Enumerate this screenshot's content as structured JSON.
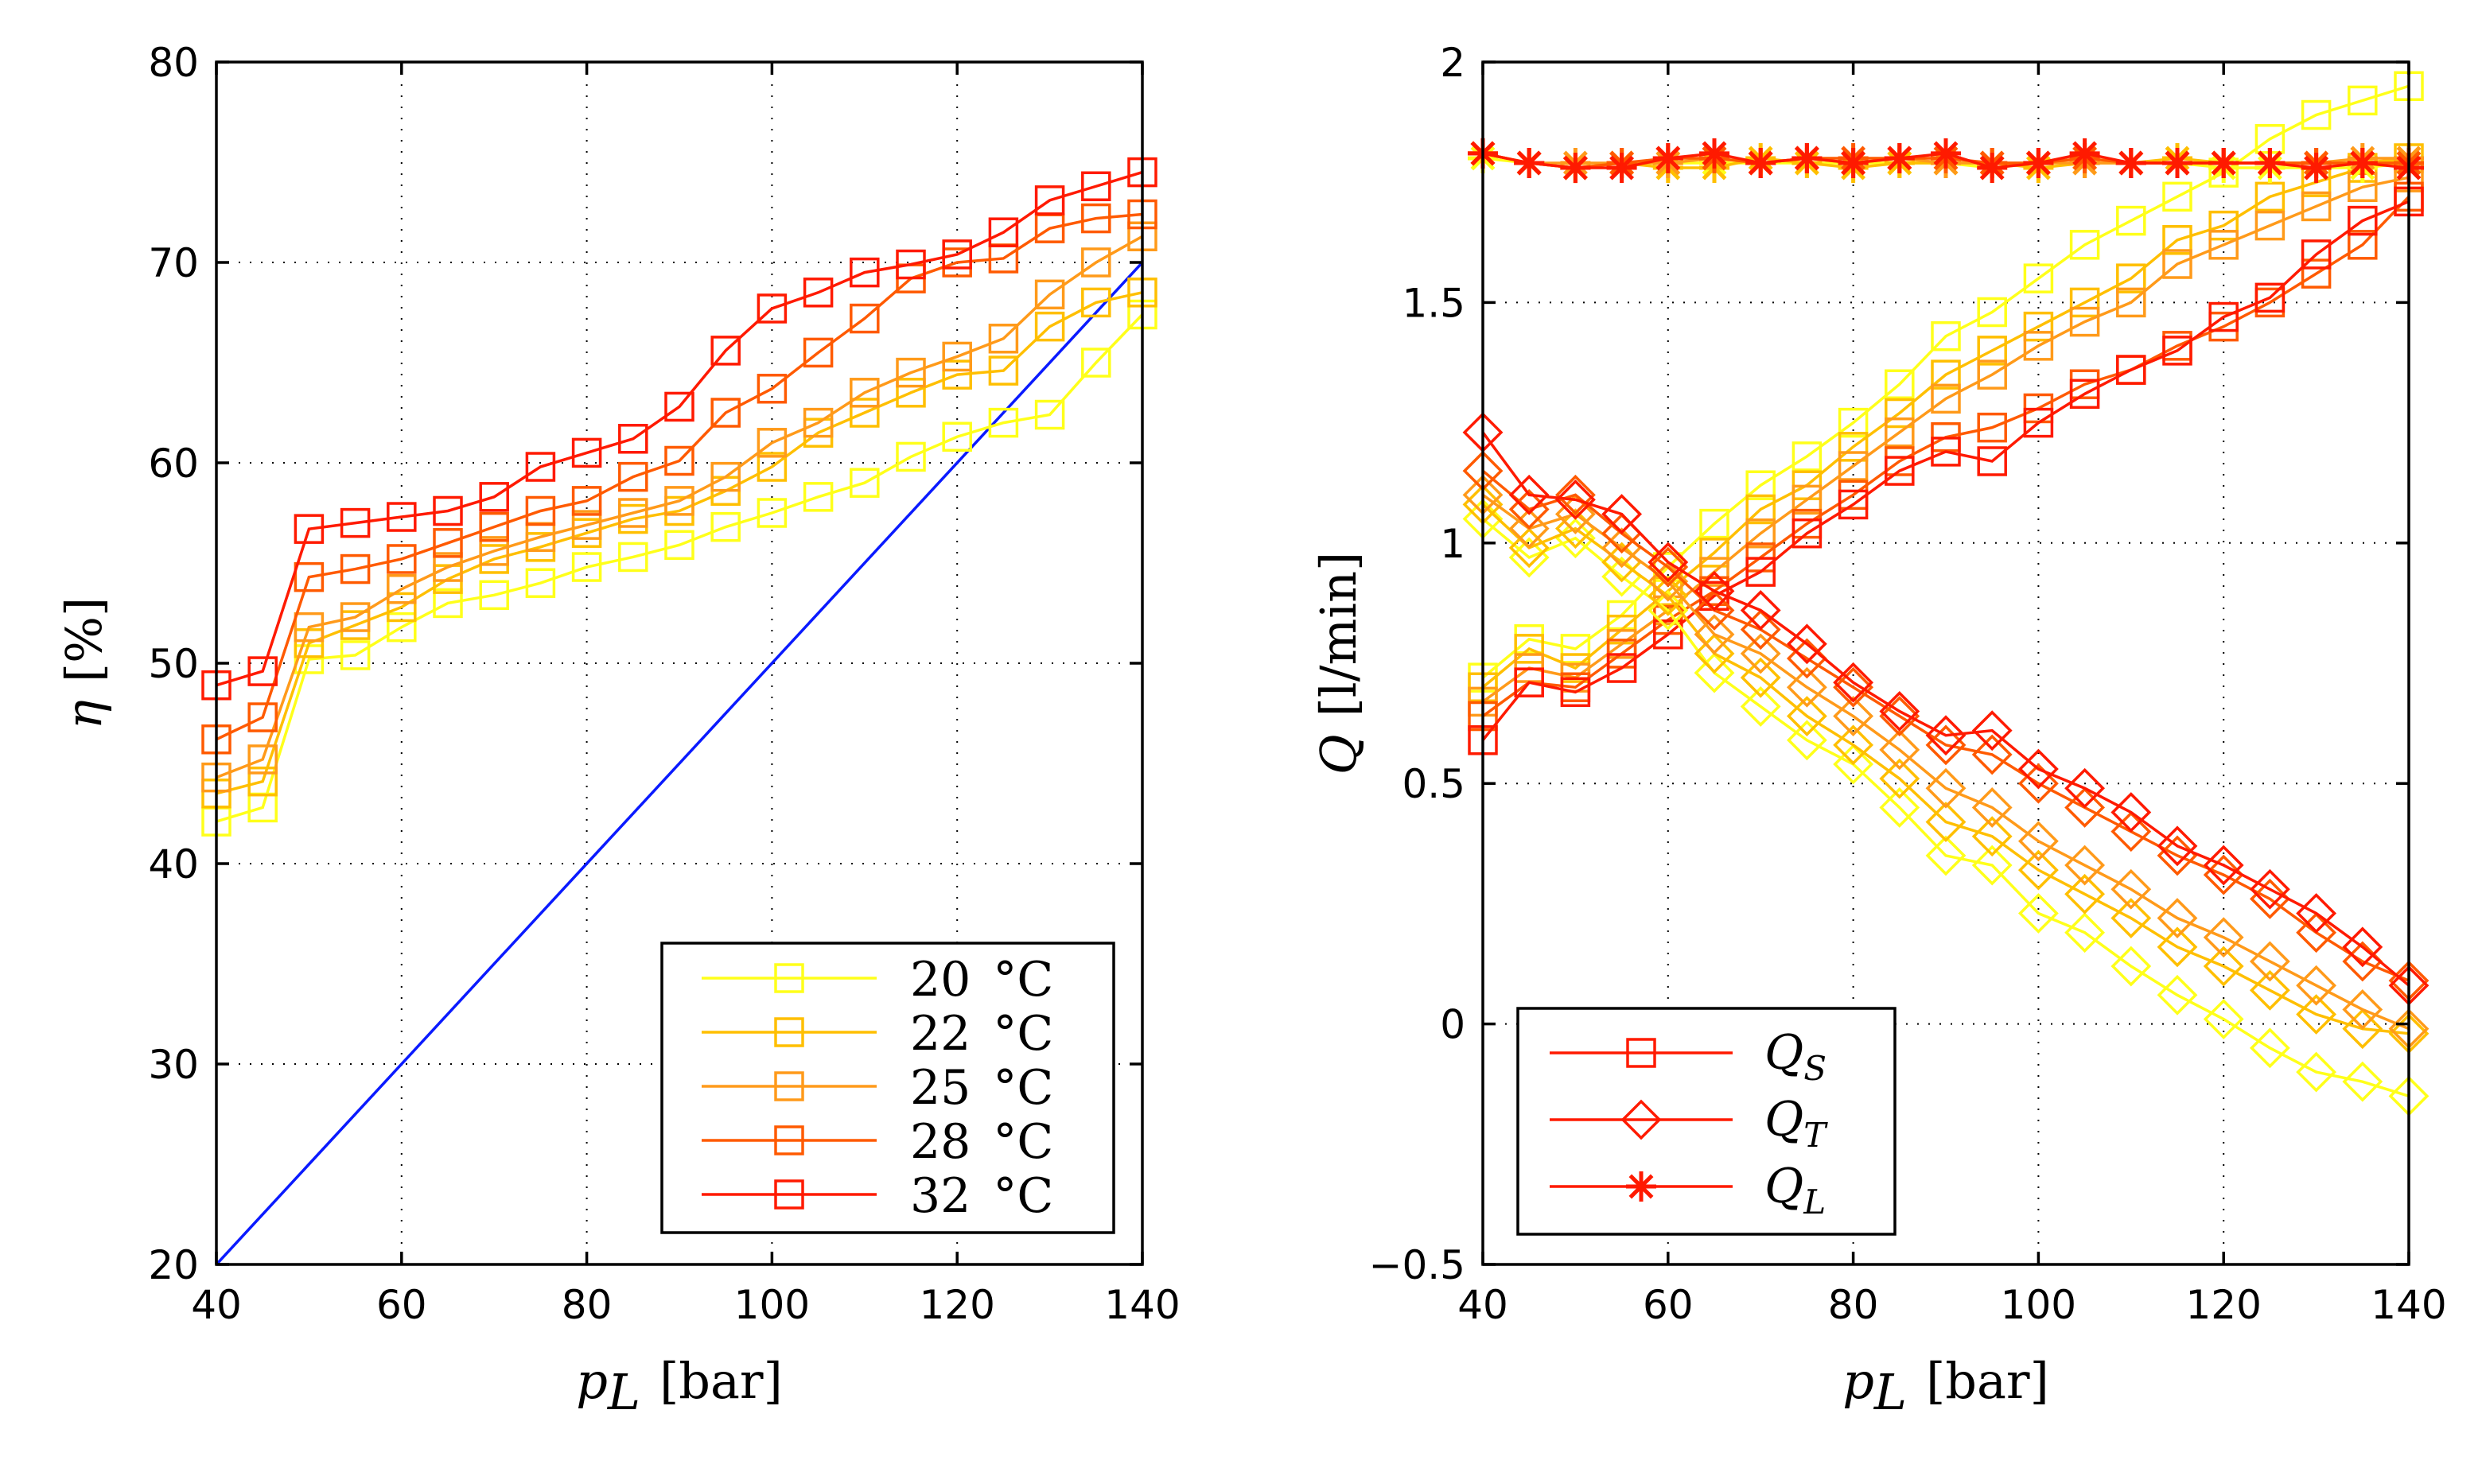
{
  "colors": {
    "c20": "#ffff1a",
    "c22": "#ffbf00",
    "c25": "#ff9a1a",
    "c28": "#ff5a00",
    "c32": "#ff1a00",
    "ref": "#0a1aff",
    "flow": "#ff1a00"
  },
  "chart_data": [
    {
      "type": "line",
      "id": "efficiency",
      "xlabel": "p_L [bar]",
      "xlabel_parts": {
        "sym": "p",
        "sub": "L",
        "unit": "[bar]"
      },
      "ylabel": "η [%]",
      "ylabel_parts": {
        "sym": "η",
        "unit": "[%]"
      },
      "xlim": [
        40,
        140
      ],
      "ylim": [
        20,
        80
      ],
      "xticks": [
        40,
        60,
        80,
        100,
        120,
        140
      ],
      "yticks": [
        20,
        30,
        40,
        50,
        60,
        70,
        80
      ],
      "grid": true,
      "legend_position": "lower-right",
      "x": [
        40,
        45,
        50,
        55,
        60,
        65,
        70,
        75,
        80,
        85,
        90,
        95,
        100,
        105,
        110,
        115,
        120,
        125,
        130,
        135,
        140
      ],
      "reference_line": {
        "name": "η = p_L/2",
        "color_key": "ref",
        "x": [
          40,
          140
        ],
        "y": [
          20,
          70
        ]
      },
      "series": [
        {
          "name": "20 °C",
          "num": "20",
          "unit": "°C",
          "color_key": "c20",
          "marker": "square",
          "values": [
            42.1,
            42.8,
            50.2,
            50.4,
            51.8,
            53.0,
            53.4,
            54.0,
            54.8,
            55.3,
            55.9,
            56.8,
            57.5,
            58.3,
            59.0,
            60.3,
            61.3,
            62.0,
            62.4,
            65.0,
            67.4
          ]
        },
        {
          "name": "22 °C",
          "num": "22",
          "unit": "°C",
          "color_key": "c22",
          "marker": "square",
          "values": [
            43.5,
            44.1,
            51.0,
            51.9,
            52.8,
            54.2,
            55.2,
            55.8,
            56.5,
            57.2,
            57.6,
            58.6,
            59.8,
            61.5,
            62.5,
            63.5,
            64.4,
            64.6,
            66.8,
            68.0,
            68.5
          ]
        },
        {
          "name": "25 °C",
          "num": "25",
          "unit": "°C",
          "color_key": "c25",
          "marker": "square",
          "values": [
            44.3,
            45.2,
            51.8,
            52.3,
            53.7,
            54.8,
            55.6,
            56.3,
            56.9,
            57.5,
            58.1,
            59.3,
            61.0,
            62.0,
            63.5,
            64.5,
            65.3,
            66.2,
            68.4,
            70.0,
            71.3
          ]
        },
        {
          "name": "28 °C",
          "num": "28",
          "unit": "°C",
          "color_key": "c28",
          "marker": "square",
          "values": [
            46.2,
            47.3,
            54.3,
            54.7,
            55.2,
            56.0,
            56.8,
            57.6,
            58.1,
            59.3,
            60.1,
            62.5,
            63.7,
            65.5,
            67.2,
            69.2,
            70.0,
            70.2,
            71.7,
            72.2,
            72.4
          ]
        },
        {
          "name": "32 °C",
          "num": "32",
          "unit": "°C",
          "color_key": "c32",
          "marker": "square",
          "values": [
            48.9,
            49.6,
            56.7,
            57.0,
            57.3,
            57.6,
            58.3,
            59.8,
            60.5,
            61.2,
            62.8,
            65.6,
            67.7,
            68.5,
            69.5,
            69.9,
            70.4,
            71.5,
            73.1,
            73.8,
            74.5
          ]
        }
      ]
    },
    {
      "type": "line",
      "id": "flow",
      "xlabel": "p_L [bar]",
      "xlabel_parts": {
        "sym": "p",
        "sub": "L",
        "unit": "[bar]"
      },
      "ylabel": "Q [l/min]",
      "ylabel_parts": {
        "sym": "Q",
        "unit": "[l/min]"
      },
      "xlim": [
        40,
        140
      ],
      "ylim": [
        -0.5,
        2
      ],
      "xticks": [
        40,
        60,
        80,
        100,
        120,
        140
      ],
      "yticks": [
        -0.5,
        0,
        0.5,
        1,
        1.5,
        2
      ],
      "ytick_labels": [
        "−0.5",
        "0",
        "0.5",
        "1",
        "1.5",
        "2"
      ],
      "grid": true,
      "legend_position": "lower-left",
      "x": [
        40,
        45,
        50,
        55,
        60,
        65,
        70,
        75,
        80,
        85,
        90,
        95,
        100,
        105,
        110,
        115,
        120,
        125,
        130,
        135,
        140
      ],
      "legend": [
        {
          "sym": "Q",
          "sub": "S",
          "marker": "square"
        },
        {
          "sym": "Q",
          "sub": "T",
          "marker": "diamond"
        },
        {
          "sym": "Q",
          "sub": "L",
          "marker": "star"
        }
      ],
      "series": [
        {
          "name": "Q_S 20 °C",
          "color_key": "c20",
          "marker": "square",
          "values": [
            0.72,
            0.8,
            0.78,
            0.85,
            0.95,
            1.04,
            1.12,
            1.18,
            1.25,
            1.33,
            1.43,
            1.48,
            1.55,
            1.62,
            1.67,
            1.72,
            1.77,
            1.84,
            1.89,
            1.92,
            1.95
          ]
        },
        {
          "name": "Q_S 22 °C",
          "color_key": "c22",
          "marker": "square",
          "values": [
            0.7,
            0.78,
            0.74,
            0.82,
            0.9,
            0.98,
            1.07,
            1.12,
            1.2,
            1.27,
            1.35,
            1.4,
            1.45,
            1.5,
            1.55,
            1.63,
            1.66,
            1.72,
            1.75,
            1.78,
            1.8
          ]
        },
        {
          "name": "Q_S 25 °C",
          "color_key": "c25",
          "marker": "square",
          "values": [
            0.67,
            0.74,
            0.72,
            0.79,
            0.86,
            0.94,
            1.02,
            1.09,
            1.16,
            1.23,
            1.3,
            1.35,
            1.41,
            1.46,
            1.5,
            1.58,
            1.62,
            1.66,
            1.7,
            1.74,
            1.76
          ]
        },
        {
          "name": "Q_S 28 °C",
          "color_key": "c28",
          "marker": "square",
          "values": [
            0.64,
            0.71,
            0.7,
            0.77,
            0.84,
            0.9,
            0.97,
            1.04,
            1.1,
            1.17,
            1.22,
            1.24,
            1.28,
            1.33,
            1.36,
            1.41,
            1.45,
            1.5,
            1.56,
            1.62,
            1.72
          ]
        },
        {
          "name": "Q_S 32 °C",
          "color_key": "c32",
          "marker": "square",
          "values": [
            0.59,
            0.71,
            0.69,
            0.74,
            0.81,
            0.89,
            0.94,
            1.02,
            1.08,
            1.15,
            1.19,
            1.17,
            1.25,
            1.31,
            1.36,
            1.4,
            1.47,
            1.51,
            1.6,
            1.67,
            1.71
          ]
        },
        {
          "name": "Q_T 20 °C",
          "color_key": "c20",
          "marker": "diamond",
          "values": [
            1.05,
            0.97,
            1.01,
            0.93,
            0.86,
            0.73,
            0.66,
            0.59,
            0.54,
            0.45,
            0.35,
            0.33,
            0.23,
            0.19,
            0.12,
            0.06,
            0.01,
            -0.05,
            -0.1,
            -0.12,
            -0.15
          ]
        },
        {
          "name": "Q_T 22 °C",
          "color_key": "c22",
          "marker": "diamond",
          "values": [
            1.08,
            0.99,
            1.03,
            0.96,
            0.89,
            0.77,
            0.72,
            0.64,
            0.58,
            0.51,
            0.42,
            0.39,
            0.32,
            0.27,
            0.22,
            0.16,
            0.12,
            0.07,
            0.02,
            -0.01,
            -0.02
          ]
        },
        {
          "name": "Q_T 25 °C",
          "color_key": "c25",
          "marker": "diamond",
          "values": [
            1.1,
            1.03,
            1.06,
            0.99,
            0.92,
            0.81,
            0.77,
            0.7,
            0.64,
            0.57,
            0.49,
            0.45,
            0.38,
            0.33,
            0.28,
            0.22,
            0.18,
            0.13,
            0.08,
            0.03,
            -0.01
          ]
        },
        {
          "name": "Q_T 28 °C",
          "color_key": "c28",
          "marker": "diamond",
          "values": [
            1.15,
            1.07,
            1.1,
            1.02,
            0.95,
            0.86,
            0.82,
            0.76,
            0.7,
            0.64,
            0.58,
            0.56,
            0.5,
            0.45,
            0.4,
            0.35,
            0.31,
            0.26,
            0.19,
            0.13,
            0.09
          ]
        },
        {
          "name": "Q_T 32 °C",
          "color_key": "c32",
          "marker": "diamond",
          "values": [
            1.23,
            1.1,
            1.09,
            1.06,
            0.96,
            0.9,
            0.86,
            0.79,
            0.71,
            0.65,
            0.6,
            0.61,
            0.53,
            0.49,
            0.44,
            0.37,
            0.33,
            0.28,
            0.23,
            0.16,
            0.08
          ]
        },
        {
          "name": "Q_L 20 °C",
          "color_key": "c20",
          "marker": "star",
          "values": [
            1.8,
            1.79,
            1.78,
            1.79,
            1.79,
            1.79,
            1.79,
            1.79,
            1.79,
            1.79,
            1.79,
            1.78,
            1.79,
            1.8,
            1.79,
            1.79,
            1.78,
            1.78,
            1.78,
            1.78,
            1.79
          ]
        },
        {
          "name": "Q_L 22 °C",
          "color_key": "c22",
          "marker": "star",
          "values": [
            1.81,
            1.79,
            1.78,
            1.79,
            1.78,
            1.78,
            1.8,
            1.79,
            1.78,
            1.79,
            1.79,
            1.79,
            1.78,
            1.79,
            1.79,
            1.8,
            1.79,
            1.79,
            1.79,
            1.79,
            1.8
          ]
        },
        {
          "name": "Q_L 25 °C",
          "color_key": "c25",
          "marker": "star",
          "values": [
            1.81,
            1.79,
            1.79,
            1.79,
            1.79,
            1.8,
            1.79,
            1.8,
            1.79,
            1.8,
            1.79,
            1.79,
            1.79,
            1.79,
            1.79,
            1.79,
            1.79,
            1.79,
            1.79,
            1.8,
            1.8
          ]
        },
        {
          "name": "Q_L 28 °C",
          "color_key": "c28",
          "marker": "star",
          "values": [
            1.81,
            1.79,
            1.78,
            1.79,
            1.8,
            1.8,
            1.79,
            1.8,
            1.8,
            1.8,
            1.8,
            1.79,
            1.79,
            1.8,
            1.79,
            1.79,
            1.79,
            1.79,
            1.79,
            1.79,
            1.79
          ]
        },
        {
          "name": "Q_L 32 °C",
          "color_key": "c32",
          "marker": "star",
          "values": [
            1.81,
            1.79,
            1.78,
            1.78,
            1.8,
            1.81,
            1.79,
            1.8,
            1.79,
            1.8,
            1.81,
            1.78,
            1.79,
            1.81,
            1.79,
            1.79,
            1.79,
            1.79,
            1.78,
            1.79,
            1.78
          ]
        }
      ]
    }
  ]
}
